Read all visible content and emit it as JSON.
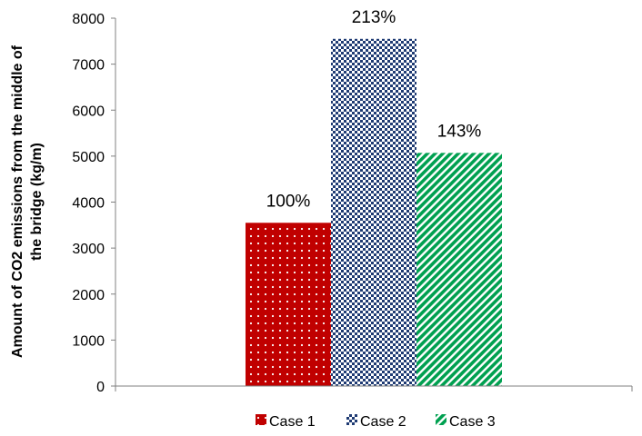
{
  "chart_data": {
    "type": "bar",
    "categories": [
      "Case 1",
      "Case 2",
      "Case 3"
    ],
    "values": [
      3550,
      7550,
      5070
    ],
    "data_labels": [
      "100%",
      "213%",
      "143%"
    ],
    "title": "",
    "xlabel": "",
    "ylabel_lines": [
      "Amount of CO2 emissions from the middle of",
      "the bridge (kg/m)"
    ],
    "ylim": [
      0,
      8000
    ],
    "yticks": [
      0,
      1000,
      2000,
      3000,
      4000,
      5000,
      6000,
      7000,
      8000
    ],
    "grid": false,
    "legend_position": "bottom",
    "colors": [
      "#c00000",
      "#1f3b73",
      "#00a050"
    ],
    "patterns": [
      "dots",
      "checker",
      "diagonal-stripes"
    ]
  }
}
